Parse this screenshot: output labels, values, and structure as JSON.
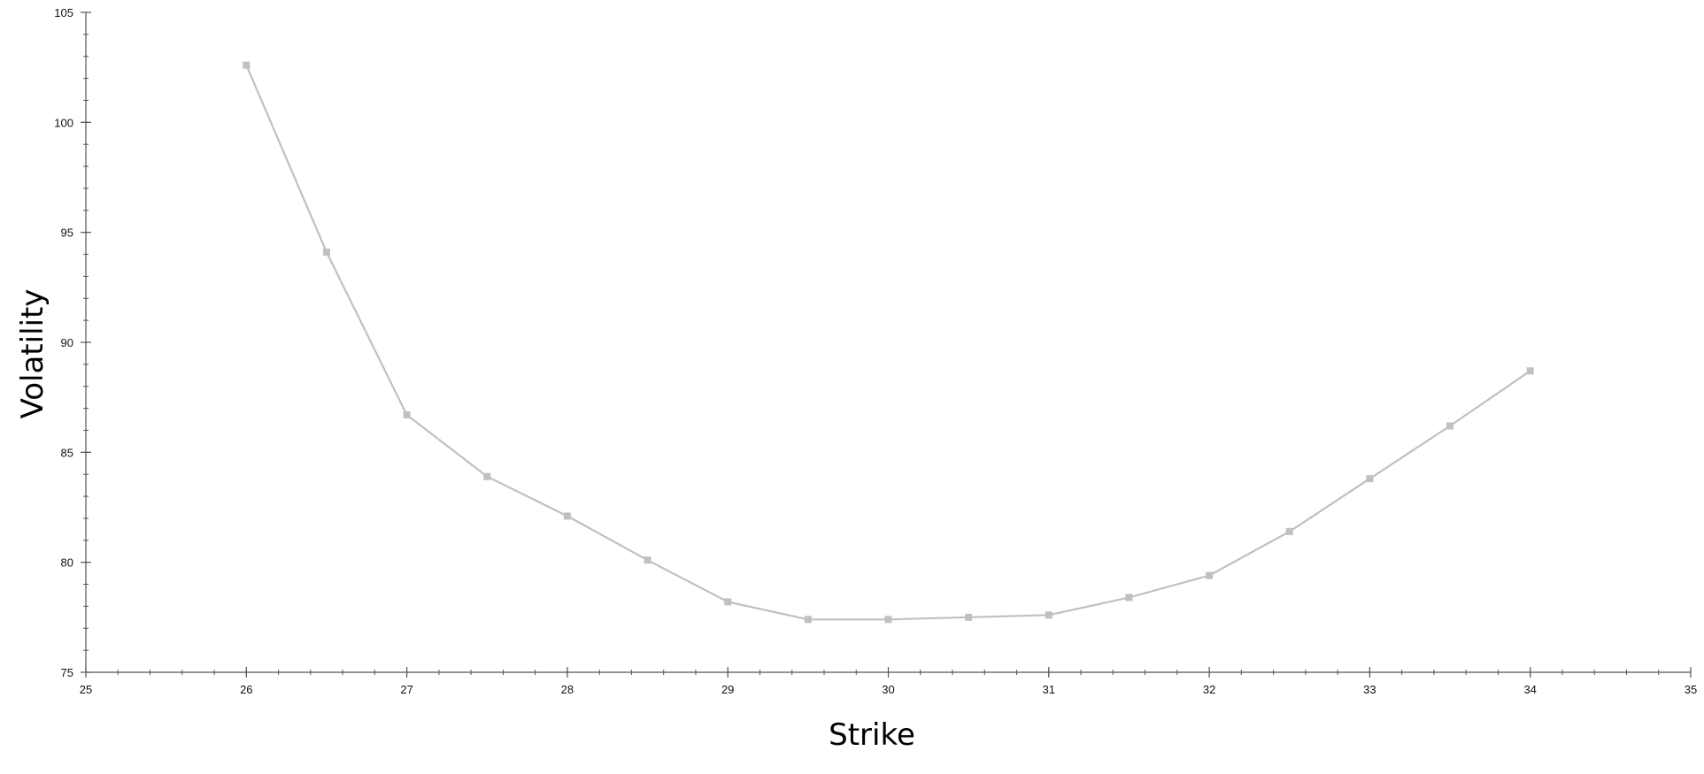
{
  "chart_data": {
    "type": "line",
    "title": "",
    "xlabel": "Strike",
    "ylabel": "Volatility",
    "xlim": [
      25,
      35
    ],
    "ylim": [
      75,
      105
    ],
    "x_ticks": [
      25,
      26,
      27,
      28,
      29,
      30,
      31,
      32,
      33,
      34,
      35
    ],
    "x_tick_labels": [
      "25",
      "26",
      "27",
      "28",
      "29",
      "30",
      "31",
      "32",
      "33",
      "34",
      "35"
    ],
    "y_ticks": [
      75,
      80,
      85,
      90,
      95,
      100,
      105
    ],
    "y_tick_labels": [
      "75",
      "80",
      "85",
      "90",
      "95",
      "100",
      "105"
    ],
    "x_minor_step": 0.2,
    "y_minor_step": 1,
    "grid": false,
    "legend": "none",
    "series": [
      {
        "color": "#c0c0c0",
        "marker": "square",
        "x": [
          26,
          26.5,
          27,
          27.5,
          28,
          28.5,
          29,
          29.5,
          30,
          30.5,
          31,
          31.5,
          32,
          32.5,
          33,
          33.5,
          34
        ],
        "y": [
          102.6,
          94.1,
          86.7,
          83.9,
          82.1,
          80.1,
          78.2,
          77.4,
          77.4,
          77.5,
          77.6,
          78.4,
          79.4,
          81.4,
          83.8,
          86.2,
          88.7
        ]
      }
    ]
  }
}
